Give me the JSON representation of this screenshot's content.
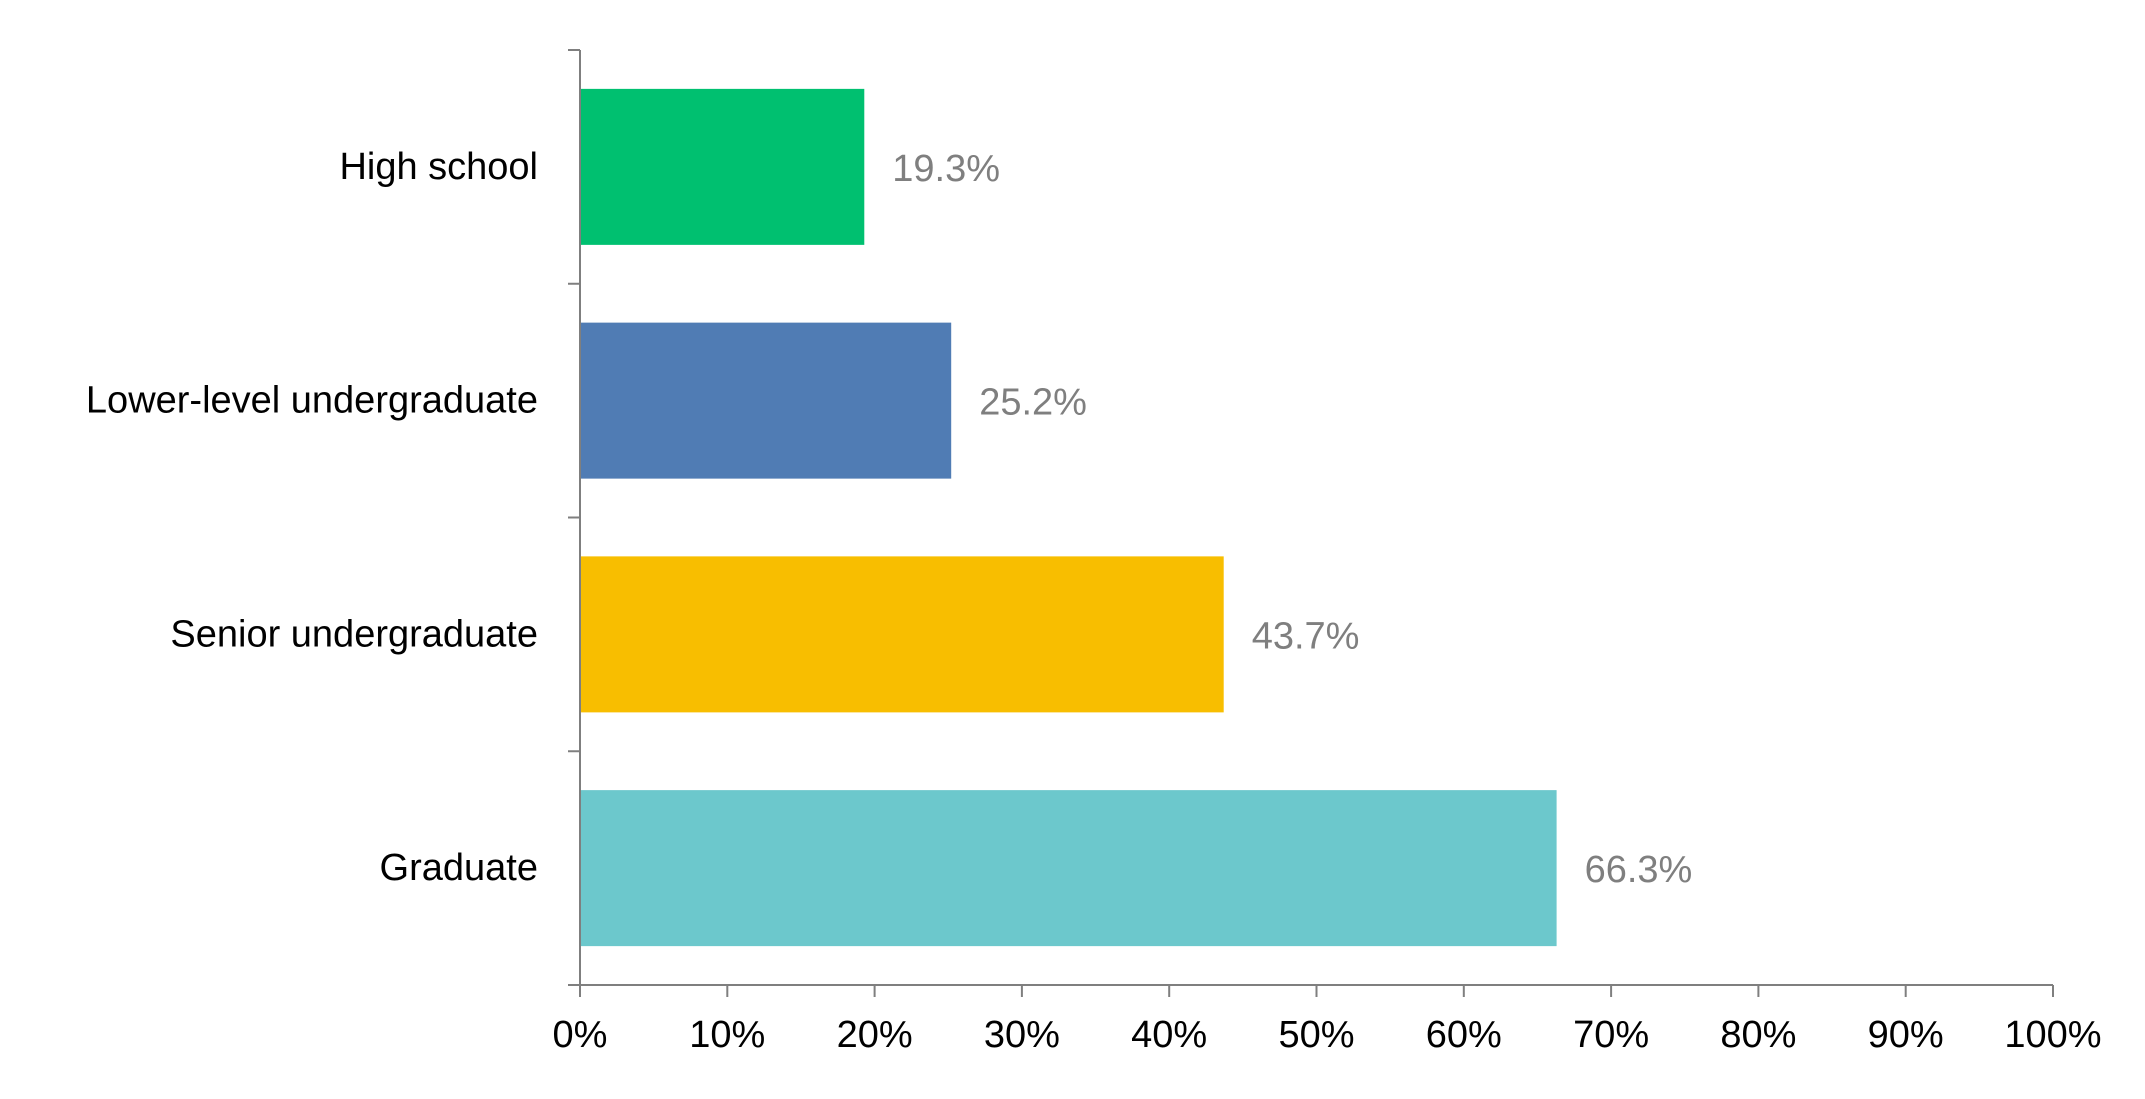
{
  "chart_data": {
    "type": "bar",
    "orientation": "horizontal",
    "categories": [
      "High school",
      "Lower-level undergraduate",
      "Senior undergraduate",
      "Graduate"
    ],
    "values": [
      19.3,
      25.2,
      43.7,
      66.3
    ],
    "data_labels": [
      "19.3%",
      "25.2%",
      "43.7%",
      "66.3%"
    ],
    "colors": [
      "#00c070",
      "#507cb4",
      "#f8be00",
      "#6cc8cc"
    ],
    "xlim": [
      0,
      100
    ],
    "x_ticks": [
      0,
      10,
      20,
      30,
      40,
      50,
      60,
      70,
      80,
      90,
      100
    ],
    "x_tick_labels": [
      "0%",
      "10%",
      "20%",
      "30%",
      "40%",
      "50%",
      "60%",
      "70%",
      "80%",
      "90%",
      "100%"
    ],
    "title": "",
    "xlabel": "",
    "ylabel": "",
    "grid": false,
    "legend": "none",
    "axis_color": "#7f7f7f",
    "data_label_color": "#7f7f7f"
  }
}
